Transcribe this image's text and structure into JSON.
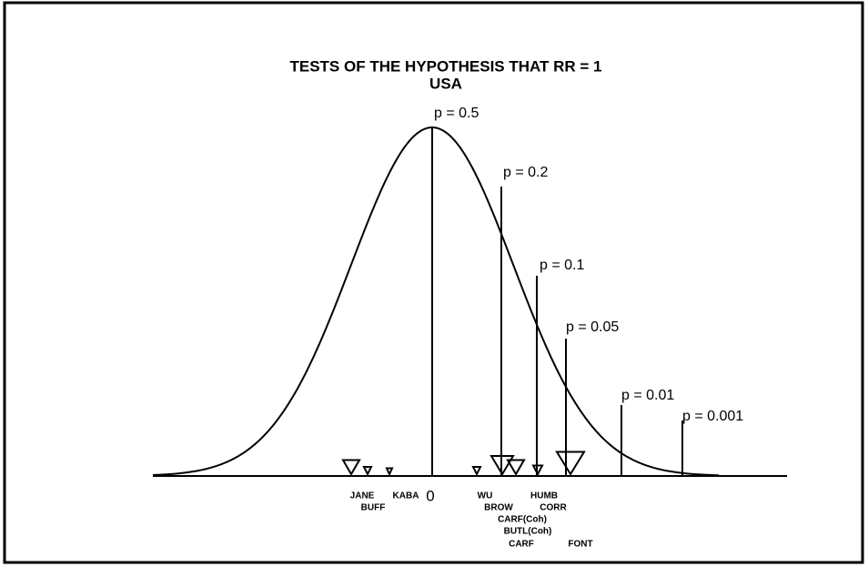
{
  "header": {
    "title": "TESTS OF THE HYPOTHESIS THAT RR = 1",
    "subtitle": "USA"
  },
  "p_lines": [
    "p = 0.5",
    "p = 0.2",
    "p = 0.1",
    "p = 0.05",
    "p = 0.01",
    "p = 0.001"
  ],
  "zero_label": "0",
  "studies": [
    "JANE",
    "KABA",
    "BUFF",
    "WU",
    "BROW",
    "HUMB",
    "CORR",
    "CARF(Coh)",
    "BUTL(Coh)",
    "CARF",
    "FONT"
  ]
}
